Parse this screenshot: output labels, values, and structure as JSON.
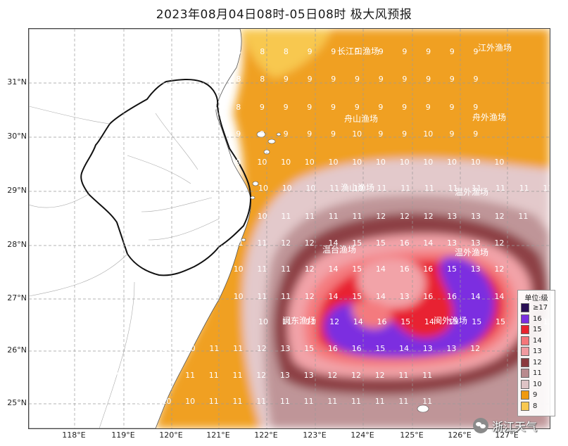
{
  "title": "2023年08月04日08时-05日08时 极大风预报",
  "latitude_labels": [
    "31°N",
    "30°N",
    "29°N",
    "28°N",
    "27°N",
    "26°N",
    "25°N"
  ],
  "longitude_labels": [
    "118°E",
    "119°E",
    "120°E",
    "121°E",
    "122°E",
    "123°E",
    "124°E",
    "125°E",
    "126°E",
    "127°E"
  ],
  "fishing_grounds": [
    "长江口渔场",
    "江外渔场",
    "舟山渔场",
    "舟外渔场",
    "渔山渔场",
    "温外渔场",
    "温外渔场",
    "温台渔场",
    "闽东渔场",
    "闽外渔场"
  ],
  "legend": {
    "title": "单位:级",
    "items": [
      {
        "label": "≥17",
        "color": "#2a0f55"
      },
      {
        "label": "16",
        "color": "#7b2fe0"
      },
      {
        "label": "15",
        "color": "#e8232e"
      },
      {
        "label": "14",
        "color": "#f4767a"
      },
      {
        "label": "13",
        "color": "#f09aa0"
      },
      {
        "label": "12",
        "color": "#8a3a3e"
      },
      {
        "label": "11",
        "color": "#b88a8e"
      },
      {
        "label": "10",
        "color": "#dec3c5"
      },
      {
        "label": "9",
        "color": "#f09a10"
      },
      {
        "label": "8",
        "color": "#f8c850"
      }
    ]
  },
  "wind_grid": [
    "8,8,8,9,9,9,9,9,9,9,9",
    "8,8,9,9,9,9,9,9,9,9,9",
    "8,8,9,9,9,9,9,9,9,9,9,9",
    "9,9,9,9,9,9,10,9,9,10,9,9",
    "9,9,10,10,10,10,10,10,10,10,10,10,10",
    "10,10,10,11,10,11,11,11,11,11,11,11,11",
    "10,10,11,11,11,11,12,12,12,13,13,12,11",
    "10,11,11,12,12,14,15,15,16,14,13,13,12",
    "9,10,11,11,12,14,15,14,16,16,15,13,12",
    "9,10,11,11,12,14,15,14,13,16,16,14,14",
    "10,11,11,12,14,16,15,14,15,15,15,14,13",
    "10,10,11,11,12,13,15,16,16,15,14,13,13,12",
    "9,10,10,11,11,11,12,13,13,12,12,12,11,11",
    "9,10,10,10,11,11,11,11,11,11,11,11,11,11"
  ],
  "watermark": "浙江天气"
}
